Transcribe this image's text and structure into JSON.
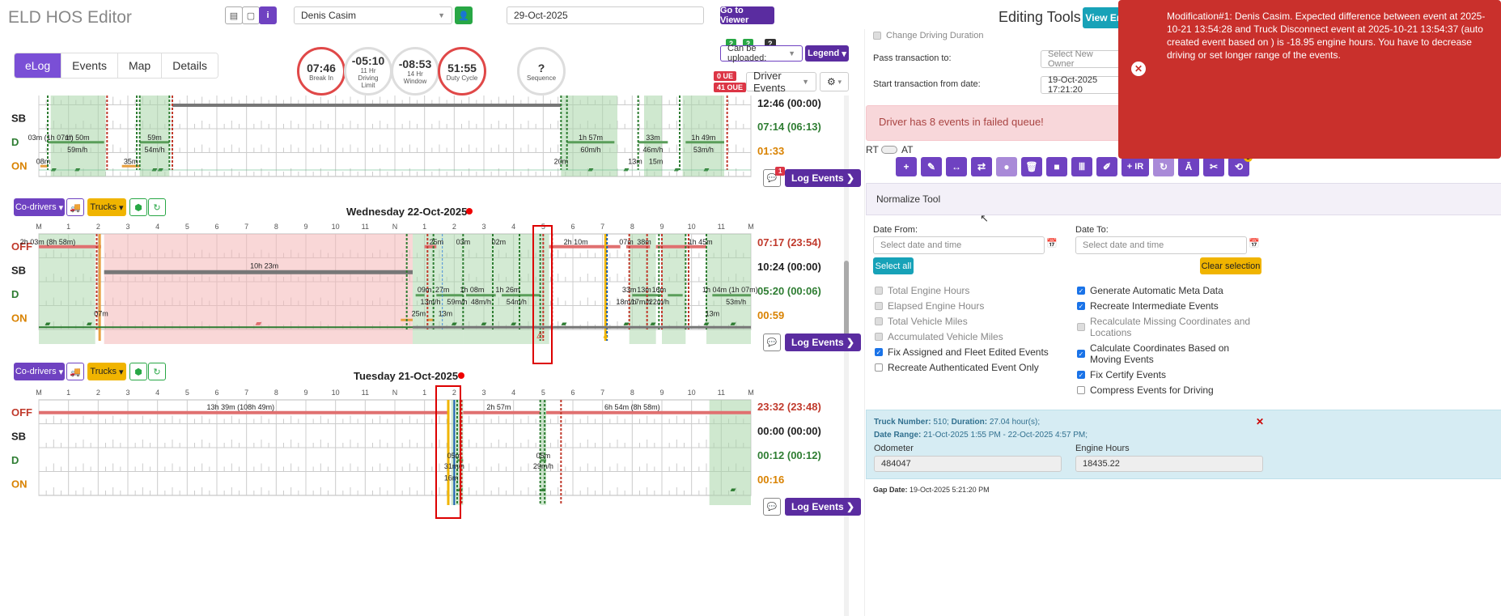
{
  "app": {
    "title": "ELD HOS Editor"
  },
  "header": {
    "driver": "Denis Casim",
    "date": "29-Oct-2025",
    "go_viewer": "Go to Viewer",
    "editing_tools": "Editing Tools",
    "view_btn": "View Er"
  },
  "tabs": [
    {
      "label": "eLog",
      "active": true
    },
    {
      "label": "Events"
    },
    {
      "label": "Map"
    },
    {
      "label": "Details"
    }
  ],
  "gauges": [
    {
      "value": "07:46",
      "label": "Break In"
    },
    {
      "value": "-05:10",
      "label": "11 Hr Driving Limit"
    },
    {
      "value": "-08:53",
      "label": "14 Hr Window"
    },
    {
      "value": "51:55",
      "label": "Duty Cycle"
    },
    {
      "value": "?",
      "label": "Sequence"
    }
  ],
  "badges": {
    "b1": "2",
    "b2": "2",
    "b3": "?",
    "ue": "0 UE",
    "oue": "41 OUE"
  },
  "controls": {
    "upload": "Can be uploaded:",
    "legend": "Legend",
    "driver_events": "Driver Events"
  },
  "rows": [
    "OFF",
    "SB",
    "D",
    "ON"
  ],
  "hours": [
    "M",
    "1",
    "2",
    "3",
    "4",
    "5",
    "6",
    "7",
    "8",
    "9",
    "10",
    "11",
    "N",
    "1",
    "2",
    "3",
    "4",
    "5",
    "6",
    "7",
    "8",
    "9",
    "10",
    "11",
    "M"
  ],
  "common": {
    "codrivers": "Co-drivers",
    "trucks": "Trucks",
    "log_events": "Log Events",
    "msg_count": "1"
  },
  "day0": {
    "totals": {
      "sb": "12:46 (00:00)",
      "d": "07:14 (06:13)",
      "on": "01:33"
    },
    "labels": [
      "03m (1h 07m)",
      "1h 50m",
      "59m",
      "59m/h",
      "54m/h",
      "1h 57m",
      "60m/h",
      "33m",
      "46m/h",
      "1h 49m",
      "53m/h",
      "08m",
      "35m",
      "20m",
      "13m",
      "15m"
    ]
  },
  "day1": {
    "title": "Wednesday 22-Oct-2025",
    "totals": {
      "off": "07:17 (23:54)",
      "sb": "10:24 (00:00)",
      "d": "05:20 (00:06)",
      "on": "00:59"
    },
    "labels": [
      "2h 03m (8h 58m)",
      "25m",
      "03m",
      "02m",
      "2h 10m",
      "07m",
      "38m",
      "1h 45m",
      "10h 23m",
      "09m",
      "27m",
      "1h 08m",
      "1h 26m",
      "33m",
      "13m",
      "16m",
      "1h 04m (1h 07m)",
      "13m/h",
      "59m/h",
      "48m/h",
      "54m/h",
      "18m/h",
      "17m/h",
      "22m/h",
      "53m/h",
      "07m",
      "25m",
      "13m",
      "13m"
    ]
  },
  "day2": {
    "title": "Tuesday 21-Oct-2025",
    "totals": {
      "off": "23:32 (23:48)",
      "sb": "00:00 (00:00)",
      "d": "00:12 (00:12)",
      "on": "00:16"
    },
    "labels": [
      "13h 39m (108h 49m)",
      "2h 57m",
      "6h 54m (8h 58m)",
      "05m",
      "05m",
      "31m/h",
      "29m/h",
      "16m"
    ]
  },
  "right": {
    "change_duration": "Change Driving Duration",
    "pass_to": "Pass transaction to:",
    "owner_ph": "Select New Owner",
    "start_from": "Start transaction from date:",
    "start_date": "19-Oct-2025 17:21:20",
    "failed": "Driver has 8 events in failed queue!",
    "rt": "RT",
    "at": "AT",
    "tools": [
      "+",
      "✎",
      "↔",
      "⇄",
      "●",
      "🗑",
      "■",
      "Ⅲ",
      "✐",
      "+ IR",
      "↻",
      "Ā",
      "✂",
      "⟲"
    ],
    "tool_badge": "3",
    "normalize": "Normalize Tool",
    "date_from": "Date From:",
    "date_to": "Date To:",
    "date_ph": "Select date and time",
    "select_all": "Select all",
    "clear": "Clear selection",
    "checks_left": [
      {
        "label": "Total Engine Hours",
        "state": "dis"
      },
      {
        "label": "Elapsed Engine Hours",
        "state": "dis"
      },
      {
        "label": "Total Vehicle Miles",
        "state": "dis"
      },
      {
        "label": "Accumulated Vehicle Miles",
        "state": "dis"
      },
      {
        "label": "Fix Assigned and Fleet Edited Events",
        "state": "on"
      },
      {
        "label": "Recreate Authenticated Event Only",
        "state": "off"
      }
    ],
    "checks_right": [
      {
        "label": "Generate Automatic Meta Data",
        "state": "on"
      },
      {
        "label": "Recreate Intermediate Events",
        "state": "on"
      },
      {
        "label": "Recalculate Missing Coordinates and Locations",
        "state": "dis"
      },
      {
        "label": "Calculate Coordinates Based on Moving Events",
        "state": "on"
      },
      {
        "label": "Fix Certify Events",
        "state": "on"
      },
      {
        "label": "Compress Events for Driving",
        "state": "off"
      }
    ],
    "info_title": "Truck Number:",
    "truck": "510",
    "dur_lbl": "Duration:",
    "duration": "27.04 hour(s);",
    "range_lbl": "Date Range:",
    "range": "21-Oct-2025 1:55 PM - 22-Oct-2025 4:57 PM;",
    "odometer_lbl": "Odometer",
    "odometer": "484047",
    "engine_lbl": "Engine Hours",
    "engine": "18435.22",
    "gap_lbl": "Gap Date:",
    "gap": "19-Oct-2025 5:21:20 PM"
  },
  "toast": "Modification#1: Denis Casim. Expected difference between event at 2025-10-21 13:54:28 and Truck Disconnect event at 2025-10-21 13:54:37 (auto created event based on ) is -18.95 engine hours. You have to decrease driving or set longer range of the events.",
  "colors": {
    "off": "#c0392b",
    "sb": "#222",
    "d": "#2e7d32",
    "on": "#d98200",
    "purple": "#5a2ca0"
  }
}
